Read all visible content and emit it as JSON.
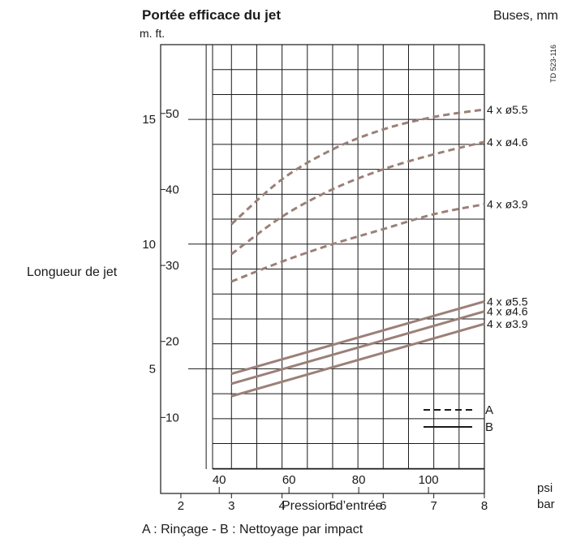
{
  "chart_data": {
    "type": "line",
    "title": "Portée efficace du jet",
    "legend_title": "Buses, mm",
    "y_unit_labels": "m.  ft.",
    "ylabel": "Longueur de jet",
    "xlabel": "Pression  d’entrée",
    "caption": "A : Rinçage - B : Nettoyage par impact",
    "doc_ref": "TD 523-116",
    "x_unit_bar": "bar",
    "x_unit_psi": "psi",
    "xlim_bar": [
      1.6,
      8
    ],
    "ylim_m": [
      0,
      18
    ],
    "x_ticks_bar": [
      "2",
      "3",
      "4",
      "5",
      "6",
      "7",
      "8"
    ],
    "x_ticks_psi": [
      "40",
      "60",
      "80",
      "100"
    ],
    "y_ticks_m": [
      "5",
      "10",
      "15"
    ],
    "y_ticks_ft": [
      "10",
      "20",
      "30",
      "40",
      "50"
    ],
    "legend": [
      {
        "key": "A",
        "style": "dashed"
      },
      {
        "key": "B",
        "style": "solid"
      }
    ],
    "series_color": "#9b8078",
    "series": [
      {
        "name": "4 x ø5.5",
        "group": "A",
        "x": [
          3,
          4,
          5,
          6,
          7,
          8
        ],
        "y": [
          10.8,
          12.6,
          13.8,
          14.6,
          15.1,
          15.4
        ]
      },
      {
        "name": "4 x ø4.6",
        "group": "A",
        "x": [
          3,
          4,
          5,
          6,
          7,
          8
        ],
        "y": [
          9.6,
          11.1,
          12.2,
          13.0,
          13.6,
          14.1
        ]
      },
      {
        "name": "4 x ø3.9",
        "group": "A",
        "x": [
          3,
          4,
          5,
          6,
          7,
          8
        ],
        "y": [
          8.5,
          9.3,
          10.0,
          10.6,
          11.2,
          11.6
        ]
      },
      {
        "name": "4 x ø5.5",
        "group": "B",
        "x": [
          3,
          8
        ],
        "y": [
          4.8,
          7.7
        ]
      },
      {
        "name": "4 x ø4.6",
        "group": "B",
        "x": [
          3,
          8
        ],
        "y": [
          4.4,
          7.3
        ]
      },
      {
        "name": "4 x ø3.9",
        "group": "B",
        "x": [
          3,
          8
        ],
        "y": [
          3.9,
          6.8
        ]
      }
    ]
  }
}
